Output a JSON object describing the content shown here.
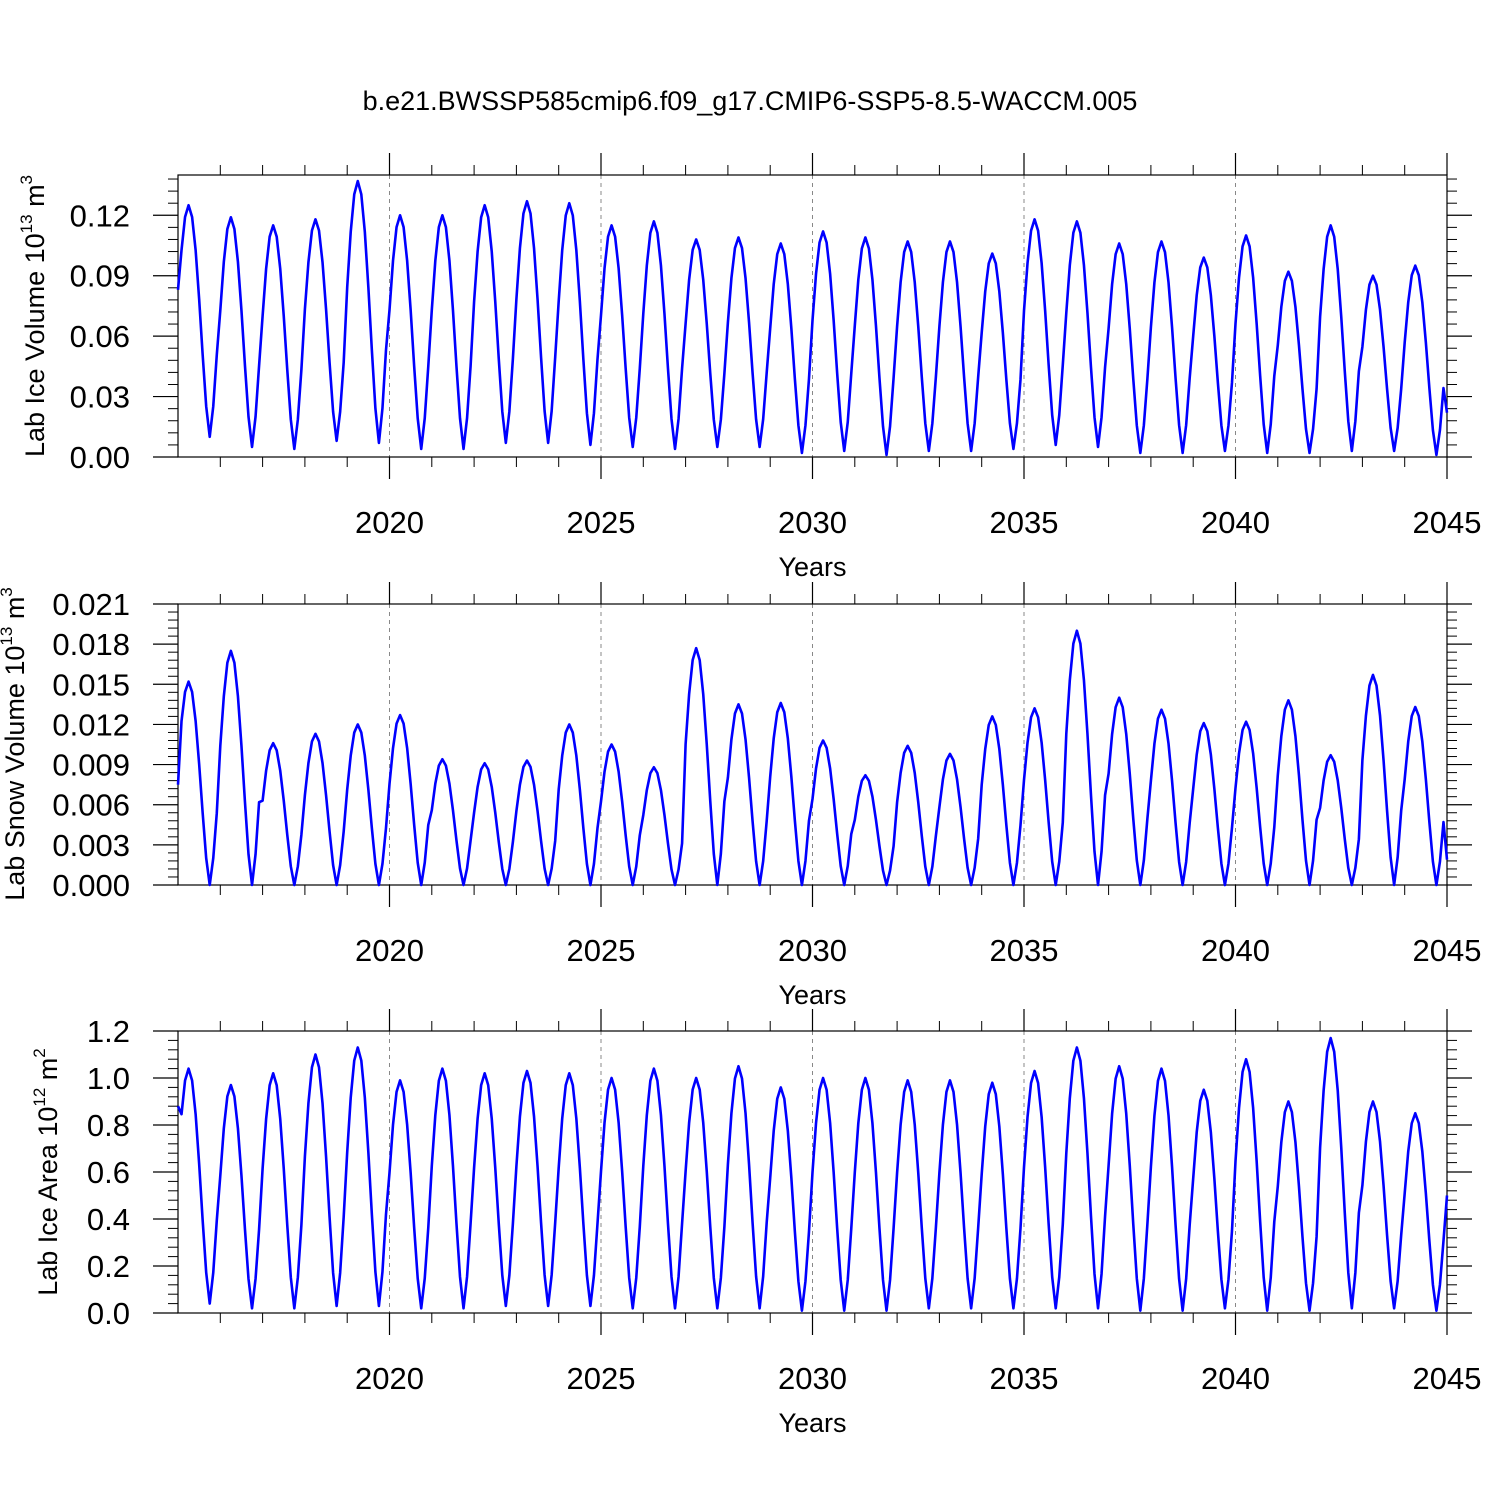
{
  "title": "b.e21.BWSSP585cmip6.f09_g17.CMIP6-SSP5-8.5-WACCM.005",
  "chart_data": [
    {
      "type": "line",
      "xlabel": "Years",
      "ylabel": {
        "prefix": "Lab Ice Volume 10",
        "exp": "13",
        "unit": " m",
        "unit_exp": "3"
      },
      "xlim": [
        2015.0,
        2045.0
      ],
      "ylim": [
        0.0,
        0.14
      ],
      "xticks": [
        "2020",
        "2025",
        "2030",
        "2035",
        "2040",
        "2045"
      ],
      "yticks": [
        "0.00",
        "0.03",
        "0.06",
        "0.09",
        "0.12"
      ],
      "series": [
        {
          "name": "Lab Ice Volume",
          "color": "#0000ff",
          "annual_peaks": [
            0.125,
            0.119,
            0.115,
            0.118,
            0.137,
            0.12,
            0.12,
            0.125,
            0.127,
            0.126,
            0.115,
            0.117,
            0.108,
            0.109,
            0.106,
            0.112,
            0.109,
            0.107,
            0.107,
            0.101,
            0.118,
            0.117,
            0.106,
            0.107,
            0.099,
            0.11,
            0.092,
            0.115,
            0.09,
            0.095
          ],
          "annual_minima": [
            0.01,
            0.005,
            0.004,
            0.008,
            0.007,
            0.004,
            0.004,
            0.007,
            0.007,
            0.006,
            0.005,
            0.004,
            0.005,
            0.005,
            0.002,
            0.003,
            0.001,
            0.003,
            0.003,
            0.004,
            0.006,
            0.005,
            0.002,
            0.002,
            0.003,
            0.002,
            0.002,
            0.003,
            0.003,
            0.001
          ],
          "start_value": 0.083,
          "end_value": 0.022
        }
      ]
    },
    {
      "type": "line",
      "xlabel": "Years",
      "ylabel": {
        "prefix": "Lab Snow Volume 10",
        "exp": "13",
        "unit": " m",
        "unit_exp": "3"
      },
      "xlim": [
        2015.0,
        2045.0
      ],
      "ylim": [
        0.0,
        0.021
      ],
      "xticks": [
        "2020",
        "2025",
        "2030",
        "2035",
        "2040",
        "2045"
      ],
      "yticks": [
        "0.000",
        "0.003",
        "0.006",
        "0.009",
        "0.012",
        "0.015",
        "0.018",
        "0.021"
      ],
      "series": [
        {
          "name": "Lab Snow Volume",
          "color": "#0000ff",
          "annual_peaks": [
            0.0152,
            0.0175,
            0.0106,
            0.0113,
            0.012,
            0.0127,
            0.0094,
            0.0091,
            0.0093,
            0.012,
            0.0105,
            0.0088,
            0.0177,
            0.0135,
            0.0136,
            0.0108,
            0.0082,
            0.0104,
            0.0098,
            0.0126,
            0.0132,
            0.019,
            0.014,
            0.0131,
            0.0121,
            0.0122,
            0.0138,
            0.0097,
            0.0157,
            0.0133
          ],
          "annual_minima": [
            0.0,
            0.0,
            0.0,
            0.0,
            0.0,
            0.0,
            0.0,
            0.0,
            0.0,
            0.0,
            0.0,
            0.0,
            0.0,
            0.0,
            0.0,
            0.0,
            0.0,
            0.0,
            0.0,
            0.0,
            0.0,
            0.0,
            0.0,
            0.0,
            0.0,
            0.0,
            0.0,
            0.0,
            0.0,
            0.0
          ],
          "start_value": 0.0075,
          "end_value": 0.0019
        }
      ]
    },
    {
      "type": "line",
      "xlabel": "Years",
      "ylabel": {
        "prefix": "Lab Ice Area 10",
        "exp": "12",
        "unit": " m",
        "unit_exp": "2"
      },
      "xlim": [
        2015.0,
        2045.0
      ],
      "ylim": [
        0.0,
        1.2
      ],
      "xticks": [
        "2020",
        "2025",
        "2030",
        "2035",
        "2040",
        "2045"
      ],
      "yticks": [
        "0.0",
        "0.2",
        "0.4",
        "0.6",
        "0.8",
        "1.0",
        "1.2"
      ],
      "series": [
        {
          "name": "Lab Ice Area",
          "color": "#0000ff",
          "annual_peaks": [
            1.04,
            0.97,
            1.02,
            1.1,
            1.13,
            0.99,
            1.04,
            1.02,
            1.03,
            1.02,
            1.0,
            1.04,
            1.0,
            1.05,
            0.96,
            1.0,
            1.0,
            0.99,
            0.99,
            0.98,
            1.03,
            1.13,
            1.05,
            1.04,
            0.95,
            1.08,
            0.9,
            1.17,
            0.9,
            0.85
          ],
          "annual_minima": [
            0.04,
            0.02,
            0.02,
            0.03,
            0.03,
            0.02,
            0.02,
            0.03,
            0.03,
            0.03,
            0.02,
            0.02,
            0.02,
            0.02,
            0.01,
            0.01,
            0.01,
            0.02,
            0.02,
            0.02,
            0.02,
            0.02,
            0.01,
            0.01,
            0.02,
            0.01,
            0.01,
            0.02,
            0.02,
            0.01
          ],
          "start_value": 0.88,
          "end_value": 0.5
        }
      ]
    }
  ]
}
